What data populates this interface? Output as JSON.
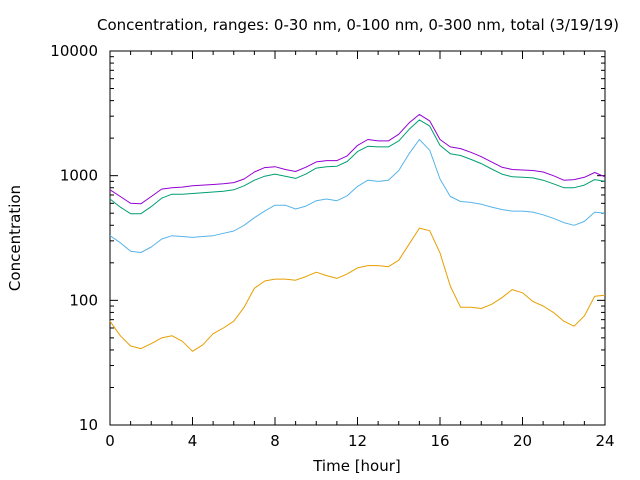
{
  "chart_data": {
    "type": "line",
    "title": "Concentration, ranges: 0-30 nm, 0-100 nm, 0-300 nm, total (3/19/19)",
    "xlabel": "Time [hour]",
    "ylabel": "Concentration",
    "xlim": [
      0,
      24
    ],
    "ylim": [
      10,
      10000
    ],
    "yscale": "log",
    "grid": false,
    "legend": "none",
    "x_ticks": [
      "0",
      "4",
      "8",
      "12",
      "16",
      "20",
      "24"
    ],
    "y_ticks": [
      "10",
      "100",
      "1000",
      "10000"
    ],
    "x": [
      0,
      0.5,
      1,
      1.5,
      2,
      2.5,
      3,
      3.5,
      4,
      4.5,
      5,
      5.5,
      6,
      6.5,
      7,
      7.5,
      8,
      8.5,
      9,
      9.5,
      10,
      10.5,
      11,
      11.5,
      12,
      12.5,
      13,
      13.5,
      14,
      14.5,
      15,
      15.5,
      16,
      16.5,
      17,
      17.5,
      18,
      18.5,
      19,
      19.5,
      20,
      20.5,
      21,
      21.5,
      22,
      22.5,
      23,
      23.5,
      24
    ],
    "series": [
      {
        "color": "#e69f00",
        "values": [
          68,
          52,
          43,
          41,
          45,
          50,
          52,
          47,
          39,
          44,
          54,
          60,
          68,
          88,
          125,
          143,
          148,
          148,
          145,
          155,
          168,
          158,
          150,
          163,
          182,
          190,
          190,
          186,
          210,
          282,
          380,
          362,
          240,
          130,
          88,
          88,
          86,
          93,
          105,
          122,
          115,
          98,
          90,
          80,
          68,
          62,
          75,
          108,
          110
        ]
      },
      {
        "color": "#56b4e9",
        "values": [
          330,
          290,
          248,
          242,
          268,
          310,
          330,
          325,
          320,
          325,
          330,
          345,
          360,
          400,
          460,
          520,
          580,
          580,
          540,
          570,
          630,
          650,
          630,
          690,
          820,
          920,
          900,
          920,
          1100,
          1500,
          1950,
          1600,
          940,
          680,
          620,
          610,
          590,
          560,
          535,
          520,
          520,
          510,
          485,
          455,
          420,
          400,
          430,
          510,
          500
        ]
      },
      {
        "color": "#009e73",
        "values": [
          650,
          560,
          495,
          495,
          565,
          660,
          710,
          710,
          720,
          730,
          740,
          750,
          770,
          830,
          920,
          990,
          1030,
          990,
          950,
          1030,
          1150,
          1180,
          1190,
          1300,
          1560,
          1720,
          1700,
          1700,
          1900,
          2350,
          2800,
          2500,
          1750,
          1500,
          1450,
          1350,
          1250,
          1130,
          1030,
          980,
          970,
          960,
          920,
          860,
          800,
          800,
          840,
          930,
          900
        ]
      },
      {
        "color": "#9400d3",
        "values": [
          770,
          680,
          600,
          595,
          680,
          780,
          800,
          810,
          830,
          840,
          850,
          860,
          880,
          940,
          1070,
          1160,
          1180,
          1120,
          1080,
          1170,
          1290,
          1320,
          1320,
          1440,
          1750,
          1950,
          1900,
          1900,
          2150,
          2650,
          3100,
          2750,
          1950,
          1700,
          1650,
          1540,
          1420,
          1290,
          1170,
          1120,
          1110,
          1100,
          1070,
          1000,
          920,
          930,
          970,
          1060,
          980
        ]
      }
    ]
  }
}
